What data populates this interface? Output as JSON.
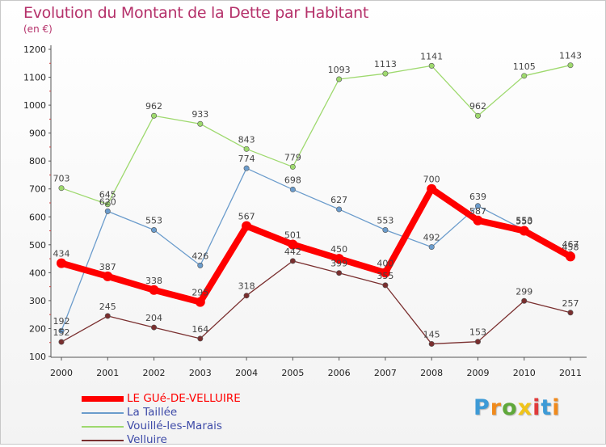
{
  "chart_data": {
    "type": "line",
    "title": "Evolution du Montant de la Dette par Habitant",
    "subtitle": "(en €)",
    "categories": [
      "2000",
      "2001",
      "2002",
      "2003",
      "2004",
      "2005",
      "2006",
      "2007",
      "2008",
      "2009",
      "2010",
      "2011"
    ],
    "y_ticks": [
      100,
      200,
      300,
      400,
      500,
      600,
      700,
      800,
      900,
      1000,
      1100,
      1200
    ],
    "ylim": [
      100,
      1200
    ],
    "grid": false,
    "legend_position": "bottom-left",
    "series": [
      {
        "name": "LE GUé-DE-VELLUIRE",
        "values": [
          434,
          387,
          338,
          295,
          567,
          501,
          450,
          400,
          700,
          587,
          550,
          458
        ],
        "color": "#ff0000",
        "legend_color": "#ff0000",
        "emphasis": true
      },
      {
        "name": "La Taillée",
        "values": [
          192,
          620,
          553,
          426,
          774,
          698,
          627,
          553,
          492,
          639,
          553,
          467
        ],
        "color": "#6b9ccc",
        "legend_color": "#3e4ba8",
        "emphasis": false
      },
      {
        "name": "Vouillé-les-Marais",
        "values": [
          703,
          645,
          962,
          933,
          843,
          779,
          1093,
          1113,
          1141,
          962,
          1105,
          1143
        ],
        "color": "#9ed96e",
        "legend_color": "#3e4ba8",
        "emphasis": false
      },
      {
        "name": "Velluire",
        "values": [
          152,
          245,
          204,
          164,
          318,
          442,
          399,
          355,
          145,
          153,
          299,
          257
        ],
        "color": "#7a2f2f",
        "legend_color": "#3e4ba8",
        "emphasis": false
      }
    ]
  },
  "logo": {
    "letters": [
      "P",
      "r",
      "o",
      "x",
      "i",
      "t",
      "i"
    ],
    "colors": [
      "#3d9ad6",
      "#f08a1c",
      "#5fa83a",
      "#f0c419",
      "#e03a3a",
      "#3d9ad6",
      "#f08a1c"
    ]
  }
}
